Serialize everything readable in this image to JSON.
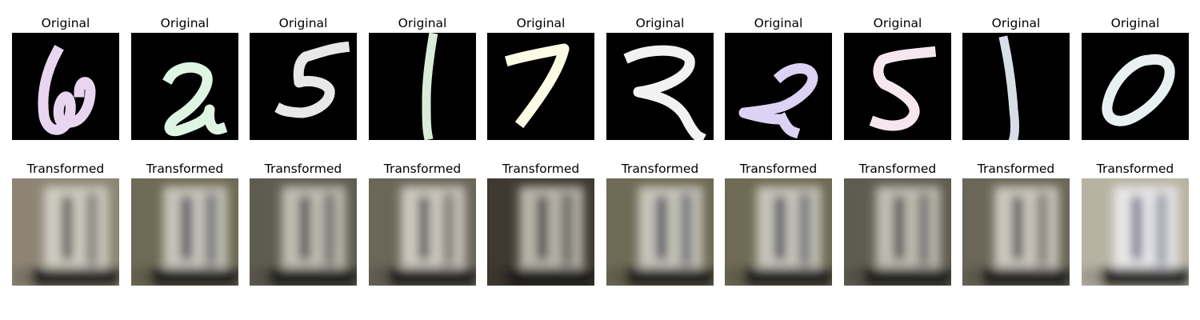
{
  "figure": {
    "rows": [
      {
        "label": "Original",
        "cells": [
          {
            "title": "Original",
            "digit": "6",
            "stroke": "#e8d6f0",
            "kind": "digit"
          },
          {
            "title": "Original",
            "digit": "2",
            "stroke": "#ddf5e2",
            "kind": "digit"
          },
          {
            "title": "Original",
            "digit": "5",
            "stroke": "#e8e8e8",
            "kind": "digit"
          },
          {
            "title": "Original",
            "digit": "1",
            "stroke": "#d9ecd9",
            "kind": "digit"
          },
          {
            "title": "Original",
            "digit": "7",
            "stroke": "#fbfbe6",
            "kind": "digit"
          },
          {
            "title": "Original",
            "digit": "2",
            "stroke": "#f2f2f2",
            "kind": "digit"
          },
          {
            "title": "Original",
            "digit": "2",
            "stroke": "#dcd3f4",
            "kind": "digit"
          },
          {
            "title": "Original",
            "digit": "5",
            "stroke": "#f6e6ee",
            "kind": "digit"
          },
          {
            "title": "Original",
            "digit": "1",
            "stroke": "#d8dde6",
            "kind": "digit"
          },
          {
            "title": "Original",
            "digit": "0",
            "stroke": "#e8f0f2",
            "kind": "digit"
          }
        ]
      },
      {
        "label": "Transformed",
        "cells": [
          {
            "title": "Transformed",
            "kind": "photo",
            "bg": "#8d8574",
            "hl": "#dcdad0",
            "dark": "#2e2a2a"
          },
          {
            "title": "Transformed",
            "kind": "photo",
            "bg": "#6e6a55",
            "hl": "#d7d6cc",
            "dark": "#1f2238"
          },
          {
            "title": "Transformed",
            "kind": "photo",
            "bg": "#5f5c50",
            "hl": "#d2cfc4",
            "dark": "#25232a"
          },
          {
            "title": "Transformed",
            "kind": "photo",
            "bg": "#6a6658",
            "hl": "#dedad2",
            "dark": "#2c2a2c"
          },
          {
            "title": "Transformed",
            "kind": "photo",
            "bg": "#3f3a31",
            "hl": "#cfcbc1",
            "dark": "#18161a"
          },
          {
            "title": "Transformed",
            "kind": "photo",
            "bg": "#6e6a55",
            "hl": "#d7d6cc",
            "dark": "#1f2238"
          },
          {
            "title": "Transformed",
            "kind": "photo",
            "bg": "#6e6a55",
            "hl": "#d7d6cc",
            "dark": "#1f2238"
          },
          {
            "title": "Transformed",
            "kind": "photo",
            "bg": "#5f5c50",
            "hl": "#d2cfc4",
            "dark": "#25232a"
          },
          {
            "title": "Transformed",
            "kind": "photo",
            "bg": "#6a6658",
            "hl": "#dedad2",
            "dark": "#2c2a2c"
          },
          {
            "title": "Transformed",
            "kind": "photo",
            "bg": "#b7b3a3",
            "hl": "#f2f2f6",
            "dark": "#4a4f6a"
          }
        ]
      }
    ]
  }
}
